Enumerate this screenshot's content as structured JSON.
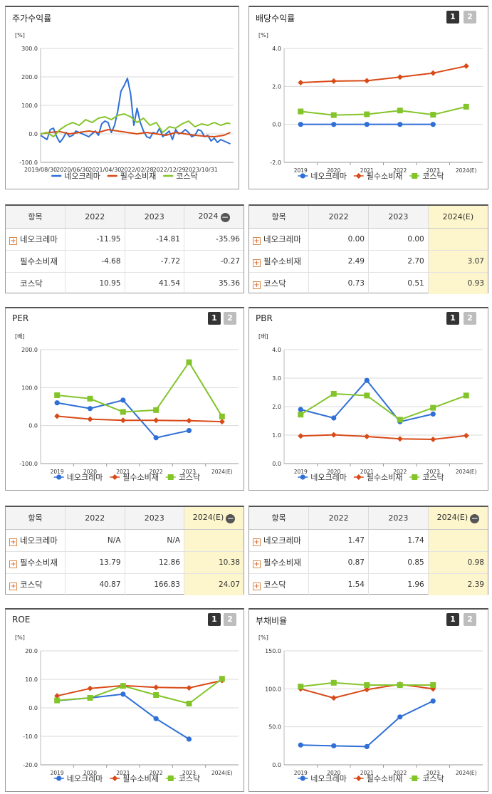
{
  "colors": {
    "s1": "#2f6fd6",
    "s2": "#d84a17",
    "s3": "#84c42b"
  },
  "charts": [
    {
      "key": "stock_return",
      "title": "주가수익률",
      "pager": [],
      "chart_data": {
        "type": "line",
        "title": "주가수익률",
        "unit": "[%]",
        "ylim": [
          -100,
          300
        ],
        "y_ticks": [
          "300.0",
          "200.0",
          "100.0",
          "0.0",
          "-100.0"
        ],
        "x_labels": [
          "2019/08/30",
          "2020/06/30",
          "2021/04/30",
          "2022/02/28",
          "2022/12/29",
          "2023/10/31"
        ],
        "x_domain": [
          0,
          60
        ],
        "x_label_positions": [
          0,
          10,
          20,
          30,
          40,
          50
        ],
        "legend": "bottom",
        "series": [
          {
            "name": "네오크레마",
            "x": [
              0,
              2,
              3,
              4,
              5,
              6,
              7,
              8,
              9,
              10,
              11,
              12,
              13,
              14,
              15,
              16,
              17,
              18,
              19,
              20,
              21,
              22,
              23,
              24,
              25,
              26,
              27,
              28,
              29,
              30,
              31,
              32,
              33,
              34,
              35,
              36,
              37,
              38,
              39,
              40,
              41,
              42,
              43,
              44,
              45,
              46,
              47,
              48,
              49,
              50,
              51,
              52,
              53,
              54,
              55,
              56,
              57,
              58,
              59
            ],
            "values": [
              -5,
              -20,
              15,
              20,
              -10,
              -30,
              -15,
              5,
              -10,
              -5,
              10,
              5,
              0,
              -5,
              -10,
              0,
              10,
              -5,
              35,
              45,
              40,
              5,
              30,
              80,
              150,
              170,
              195,
              140,
              30,
              90,
              40,
              10,
              -10,
              -15,
              5,
              0,
              20,
              -10,
              0,
              10,
              -20,
              15,
              0,
              5,
              15,
              5,
              -10,
              -5,
              15,
              10,
              -10,
              -5,
              -25,
              -15,
              -30,
              -20,
              -25,
              -30,
              -35
            ]
          },
          {
            "name": "필수소비재",
            "x": [
              0,
              3,
              6,
              9,
              12,
              15,
              18,
              21,
              24,
              27,
              30,
              33,
              36,
              39,
              42,
              45,
              48,
              51,
              54,
              57,
              59
            ],
            "values": [
              0,
              5,
              8,
              0,
              5,
              10,
              5,
              15,
              10,
              5,
              0,
              5,
              0,
              -5,
              5,
              0,
              -5,
              -8,
              -10,
              -5,
              5
            ]
          },
          {
            "name": "코스닥",
            "x": [
              0,
              2,
              4,
              6,
              8,
              10,
              12,
              14,
              16,
              18,
              20,
              22,
              24,
              26,
              28,
              30,
              32,
              34,
              36,
              38,
              40,
              42,
              44,
              46,
              48,
              50,
              52,
              54,
              56,
              58,
              59
            ],
            "values": [
              0,
              5,
              -10,
              15,
              30,
              40,
              30,
              50,
              40,
              55,
              60,
              50,
              65,
              70,
              60,
              40,
              55,
              30,
              40,
              5,
              25,
              20,
              35,
              45,
              25,
              35,
              30,
              40,
              30,
              38,
              36
            ]
          }
        ]
      }
    },
    {
      "key": "dividend",
      "title": "배당수익률",
      "pager": [
        "1",
        "2"
      ],
      "chart_data": {
        "type": "line",
        "title": "배당수익률",
        "unit": "[%]",
        "ylim": [
          -2,
          4
        ],
        "y_ticks": [
          "4.0",
          "2.0",
          "0.0",
          "-2.0"
        ],
        "categories": [
          "2019",
          "2020",
          "2021",
          "2022",
          "2023",
          "2024(E)"
        ],
        "legend": "bottom",
        "series": [
          {
            "name": "네오크레마",
            "values": [
              0.0,
              0.0,
              0.0,
              0.0,
              0.0,
              null
            ]
          },
          {
            "name": "필수소비재",
            "values": [
              2.2,
              2.28,
              2.3,
              2.49,
              2.7,
              3.07
            ]
          },
          {
            "name": "코스닥",
            "values": [
              0.68,
              0.49,
              0.53,
              0.73,
              0.51,
              0.93
            ]
          }
        ]
      }
    },
    {
      "key": "per",
      "title": "PER",
      "pager": [
        "1",
        "2"
      ],
      "chart_data": {
        "type": "line",
        "title": "PER",
        "unit": "[배]",
        "ylim": [
          -100,
          200
        ],
        "y_ticks": [
          "200.0",
          "100.0",
          "0.0",
          "-100.0"
        ],
        "categories": [
          "2019",
          "2020",
          "2021",
          "2022",
          "2023",
          "2024(E)"
        ],
        "legend": "bottom",
        "series": [
          {
            "name": "네오크레마",
            "values": [
              60,
              45,
              67,
              -32,
              -13,
              null
            ]
          },
          {
            "name": "필수소비재",
            "values": [
              25,
              17,
              14,
              13.79,
              12.86,
              10.38
            ]
          },
          {
            "name": "코스닥",
            "values": [
              80,
              71,
              36,
              40.87,
              166.83,
              24.07
            ]
          }
        ]
      }
    },
    {
      "key": "pbr",
      "title": "PBR",
      "pager": [
        "1",
        "2"
      ],
      "chart_data": {
        "type": "line",
        "title": "PBR",
        "unit": "[배]",
        "ylim": [
          0,
          4
        ],
        "y_ticks": [
          "4.0",
          "3.0",
          "2.0",
          "1.0",
          "0.0"
        ],
        "categories": [
          "2019",
          "2020",
          "2021",
          "2022",
          "2023",
          "2024(E)"
        ],
        "legend": "bottom",
        "series": [
          {
            "name": "네오크레마",
            "values": [
              1.9,
              1.6,
              2.92,
              1.47,
              1.74,
              null
            ]
          },
          {
            "name": "필수소비재",
            "values": [
              0.97,
              1.01,
              0.95,
              0.87,
              0.85,
              0.98
            ]
          },
          {
            "name": "코스닥",
            "values": [
              1.72,
              2.45,
              2.39,
              1.54,
              1.96,
              2.39
            ]
          }
        ]
      }
    },
    {
      "key": "roe",
      "title": "ROE",
      "pager": [
        "1",
        "2"
      ],
      "chart_data": {
        "type": "line",
        "title": "ROE",
        "unit": "[%]",
        "ylim": [
          -20,
          20
        ],
        "y_ticks": [
          "20.0",
          "10.0",
          "0.0",
          "-10.0",
          "-20.0"
        ],
        "categories": [
          "2019",
          "2020",
          "2021",
          "2022",
          "2023",
          "2024(E)"
        ],
        "legend": "bottom",
        "series": [
          {
            "name": "네오크레마",
            "values": [
              2.5,
              3.5,
              4.8,
              -3.8,
              -11.0,
              null
            ]
          },
          {
            "name": "필수소비재",
            "values": [
              4.2,
              6.8,
              7.8,
              7.2,
              7.0,
              9.6
            ]
          },
          {
            "name": "코스닥",
            "values": [
              2.6,
              3.5,
              7.7,
              4.5,
              1.5,
              10.2
            ]
          }
        ]
      }
    },
    {
      "key": "debt",
      "title": "부채비율",
      "pager": [
        "1",
        "2"
      ],
      "chart_data": {
        "type": "line",
        "title": "부채비율",
        "unit": "[%]",
        "ylim": [
          0,
          150
        ],
        "y_ticks": [
          "150.0",
          "100.0",
          "50.0",
          "0.0"
        ],
        "categories": [
          "2019",
          "2020",
          "2021",
          "2022",
          "2023",
          "2024(E)"
        ],
        "legend": "bottom",
        "series": [
          {
            "name": "네오크레마",
            "values": [
              26,
              25,
              24,
              63,
              84,
              null
            ]
          },
          {
            "name": "필수소비재",
            "values": [
              100,
              88,
              99,
              106,
              100,
              null
            ]
          },
          {
            "name": "코스닥",
            "values": [
              103,
              108,
              105,
              105,
              105,
              null
            ]
          }
        ]
      }
    }
  ],
  "tables": [
    {
      "key": "stock_return_table",
      "header": [
        "항목",
        "2022",
        "2023",
        "2024"
      ],
      "header_minus": true,
      "highlight_last": false,
      "rows": [
        {
          "label": "네오크레마",
          "plus": true,
          "cells": [
            "-11.95",
            "-14.81",
            "-35.96"
          ]
        },
        {
          "label": "필수소비재",
          "plus": false,
          "cells": [
            "-4.68",
            "-7.72",
            "-0.27"
          ]
        },
        {
          "label": "코스닥",
          "plus": false,
          "cells": [
            "10.95",
            "41.54",
            "35.36"
          ]
        }
      ]
    },
    {
      "key": "dividend_table",
      "header": [
        "항목",
        "2022",
        "2023",
        "2024(E)"
      ],
      "header_minus": false,
      "highlight_last": true,
      "rows": [
        {
          "label": "네오크레마",
          "plus": true,
          "cells": [
            "0.00",
            "0.00",
            ""
          ]
        },
        {
          "label": "필수소비재",
          "plus": true,
          "cells": [
            "2.49",
            "2.70",
            "3.07"
          ]
        },
        {
          "label": "코스닥",
          "plus": true,
          "cells": [
            "0.73",
            "0.51",
            "0.93"
          ]
        }
      ]
    },
    {
      "key": "per_table",
      "header": [
        "항목",
        "2022",
        "2023",
        "2024(E)"
      ],
      "header_minus": true,
      "highlight_last": true,
      "rows": [
        {
          "label": "네오크레마",
          "plus": true,
          "cells": [
            "N/A",
            "N/A",
            ""
          ]
        },
        {
          "label": "필수소비재",
          "plus": true,
          "cells": [
            "13.79",
            "12.86",
            "10.38"
          ]
        },
        {
          "label": "코스닥",
          "plus": true,
          "cells": [
            "40.87",
            "166.83",
            "24.07"
          ]
        }
      ]
    },
    {
      "key": "pbr_table",
      "header": [
        "항목",
        "2022",
        "2023",
        "2024(E)"
      ],
      "header_minus": true,
      "highlight_last": true,
      "rows": [
        {
          "label": "네오크레마",
          "plus": true,
          "cells": [
            "1.47",
            "1.74",
            ""
          ]
        },
        {
          "label": "필수소비재",
          "plus": true,
          "cells": [
            "0.87",
            "0.85",
            "0.98"
          ]
        },
        {
          "label": "코스닥",
          "plus": true,
          "cells": [
            "1.54",
            "1.96",
            "2.39"
          ]
        }
      ]
    }
  ]
}
